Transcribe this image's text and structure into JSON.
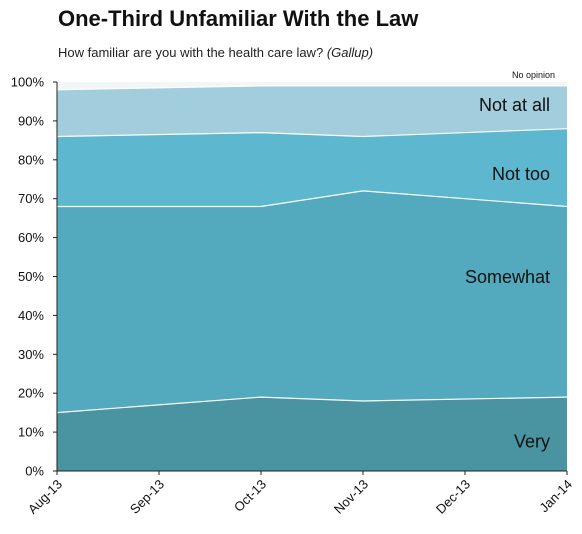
{
  "title": "One-Third Unfamiliar With the Law",
  "subtitle": "How familiar are you with the health care law?",
  "source": "(Gallup)",
  "colors": {
    "very": "#4a93a1",
    "somewhat": "#53a9bd",
    "not_too": "#5cb7cf",
    "not_at_all": "#a2cddc",
    "no_opinion": "#f3f6f7",
    "divider": "#ffffff",
    "axis": "#222222"
  },
  "chart_data": {
    "type": "area",
    "stacked": true,
    "x": [
      "Aug-13",
      "Sep-13",
      "Oct-13",
      "Nov-13",
      "Dec-13",
      "Jan-14"
    ],
    "ylim": [
      0,
      100
    ],
    "yticks": [
      "0%",
      "10%",
      "20%",
      "30%",
      "40%",
      "50%",
      "60%",
      "70%",
      "80%",
      "90%",
      "100%"
    ],
    "grid": false,
    "xlabel": "",
    "ylabel": "",
    "series": [
      {
        "name": "Very",
        "key": "very",
        "x": [
          "Aug-13",
          "Oct-13",
          "Nov-13",
          "Jan-14"
        ],
        "values": [
          15,
          19,
          18,
          19
        ]
      },
      {
        "name": "Somewhat",
        "key": "somewhat",
        "x": [
          "Aug-13",
          "Oct-13",
          "Nov-13",
          "Jan-14"
        ],
        "values": [
          53,
          49,
          54,
          49
        ]
      },
      {
        "name": "Not too",
        "key": "not_too",
        "x": [
          "Aug-13",
          "Oct-13",
          "Nov-13",
          "Jan-14"
        ],
        "values": [
          18,
          19,
          14,
          20
        ]
      },
      {
        "name": "Not at all",
        "key": "not_at_all",
        "x": [
          "Aug-13",
          "Oct-13",
          "Nov-13",
          "Jan-14"
        ],
        "values": [
          12,
          12,
          13,
          11
        ]
      },
      {
        "name": "No opinion",
        "key": "no_opinion",
        "x": [
          "Aug-13",
          "Oct-13",
          "Nov-13",
          "Jan-14"
        ],
        "values": [
          2,
          1,
          1,
          1
        ]
      }
    ]
  }
}
